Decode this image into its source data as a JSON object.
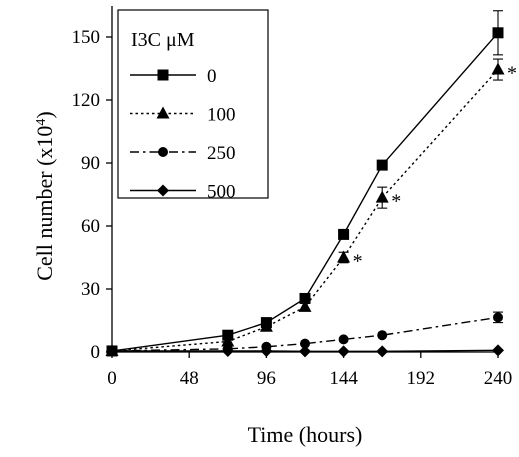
{
  "chart_data": {
    "type": "line",
    "xlabel": "Time (hours)",
    "ylabel": "Cell number (x10",
    "ylabel_superscript": "4",
    "ylabel_suffix": ")",
    "x_ticks": [
      "0",
      "48",
      "96",
      "144",
      "192",
      "240"
    ],
    "y_ticks": [
      "0",
      "30",
      "60",
      "90",
      "120",
      "150"
    ],
    "xlim": [
      0,
      240
    ],
    "ylim": [
      0,
      150
    ],
    "grid": false,
    "legend": {
      "title": "I3C μM",
      "position": "top-left"
    },
    "series": [
      {
        "name": "0",
        "marker": "square",
        "dash": "solid",
        "points": [
          {
            "x": 0,
            "y": 0.5
          },
          {
            "x": 72,
            "y": 8
          },
          {
            "x": 96,
            "y": 14
          },
          {
            "x": 120,
            "y": 25.5
          },
          {
            "x": 144,
            "y": 56
          },
          {
            "x": 168,
            "y": 89
          },
          {
            "x": 240,
            "y": 152,
            "err": 10.5
          }
        ]
      },
      {
        "name": "100",
        "marker": "triangle",
        "dash": "dotted",
        "points": [
          {
            "x": 0,
            "y": 0.5
          },
          {
            "x": 72,
            "y": 5
          },
          {
            "x": 96,
            "y": 12
          },
          {
            "x": 120,
            "y": 21.5
          },
          {
            "x": 144,
            "y": 45,
            "err": 2.5,
            "sig": "*"
          },
          {
            "x": 168,
            "y": 73.5,
            "err": 5,
            "sig": "*"
          },
          {
            "x": 240,
            "y": 134.5,
            "err": 5,
            "sig": "*"
          }
        ]
      },
      {
        "name": "250",
        "marker": "circle",
        "dash": "dashdot",
        "points": [
          {
            "x": 0,
            "y": 0.5
          },
          {
            "x": 72,
            "y": 1.5
          },
          {
            "x": 96,
            "y": 2.5
          },
          {
            "x": 120,
            "y": 4
          },
          {
            "x": 144,
            "y": 6
          },
          {
            "x": 168,
            "y": 8
          },
          {
            "x": 240,
            "y": 16.5,
            "err": 2.5
          }
        ]
      },
      {
        "name": "500",
        "marker": "diamond",
        "dash": "solid",
        "points": [
          {
            "x": 0,
            "y": 0.5
          },
          {
            "x": 72,
            "y": 0.5
          },
          {
            "x": 96,
            "y": 0.5
          },
          {
            "x": 120,
            "y": 0.3
          },
          {
            "x": 144,
            "y": 0.3
          },
          {
            "x": 168,
            "y": 0.3
          },
          {
            "x": 240,
            "y": 0.8
          }
        ]
      }
    ]
  }
}
